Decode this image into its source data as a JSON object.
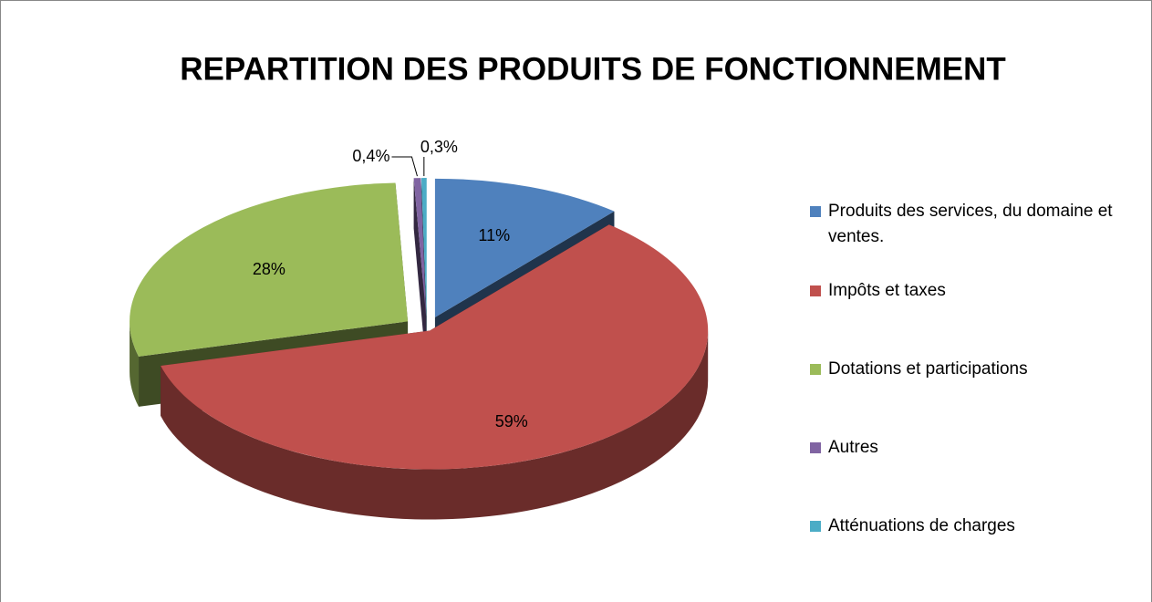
{
  "chart_data": {
    "type": "pie",
    "title": "REPARTITION DES PRODUITS DE FONCTIONNEMENT",
    "categories": [
      "Produits des services, du domaine et ventes.",
      "Impôts et taxes",
      "Dotations et participations",
      "Autres",
      "Atténuations de charges"
    ],
    "values": [
      11,
      59,
      28,
      0.4,
      0.3
    ],
    "value_labels": [
      "11%",
      "59%",
      "28%",
      "0,4%",
      "0,3%"
    ],
    "colors": [
      "#4f81bd",
      "#c0504d",
      "#9bbb59",
      "#8064a2",
      "#4bacc6"
    ],
    "legend": "right"
  }
}
